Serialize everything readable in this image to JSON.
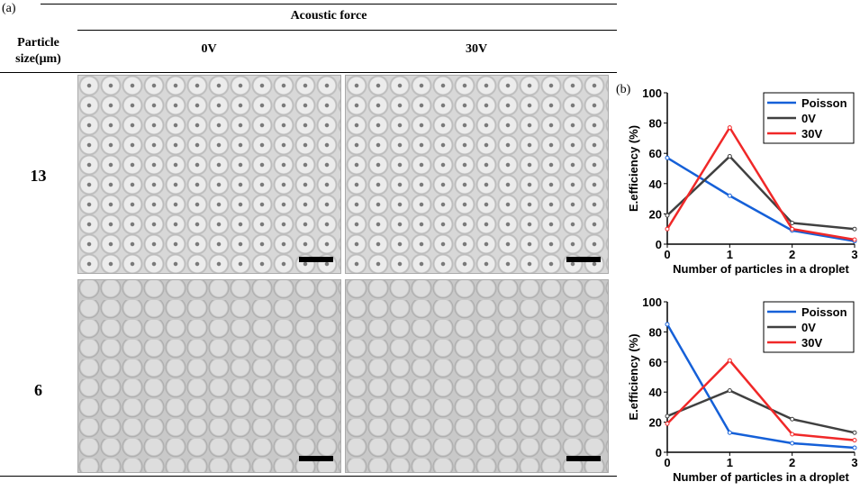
{
  "panel_a": {
    "label": "(a)",
    "header": "Acoustic force",
    "row_header": [
      "Particle",
      "size(μm)"
    ],
    "columns": [
      "0V",
      "30V"
    ],
    "rows": [
      "13",
      "6"
    ]
  },
  "panel_b": {
    "label": "(b)"
  },
  "chart_data": [
    {
      "type": "line",
      "xlabel": "Number of particles in a droplet",
      "ylabel": "E.efficiency (%)",
      "x": [
        0,
        1,
        2,
        3
      ],
      "xlim": [
        0,
        3
      ],
      "ylim": [
        0,
        100
      ],
      "yticks": [
        0,
        20,
        40,
        60,
        80,
        100
      ],
      "legend": "top-right",
      "series": [
        {
          "name": "Poisson",
          "color": "#1560d8",
          "values": [
            57,
            32,
            9,
            2
          ]
        },
        {
          "name": "0V",
          "color": "#404040",
          "values": [
            19,
            58,
            14,
            10
          ]
        },
        {
          "name": "30V",
          "color": "#f02828",
          "values": [
            10,
            77,
            10,
            3
          ]
        }
      ]
    },
    {
      "type": "line",
      "xlabel": "Number of particles in a droplet",
      "ylabel": "E.efficiency (%)",
      "x": [
        0,
        1,
        2,
        3
      ],
      "xlim": [
        0,
        3
      ],
      "ylim": [
        0,
        100
      ],
      "yticks": [
        0,
        20,
        40,
        60,
        80,
        100
      ],
      "legend": "top-right",
      "series": [
        {
          "name": "Poisson",
          "color": "#1560d8",
          "values": [
            85,
            13,
            6,
            3
          ]
        },
        {
          "name": "0V",
          "color": "#404040",
          "values": [
            24,
            41,
            22,
            13
          ]
        },
        {
          "name": "30V",
          "color": "#f02828",
          "values": [
            19,
            61,
            12,
            8
          ]
        }
      ]
    }
  ]
}
